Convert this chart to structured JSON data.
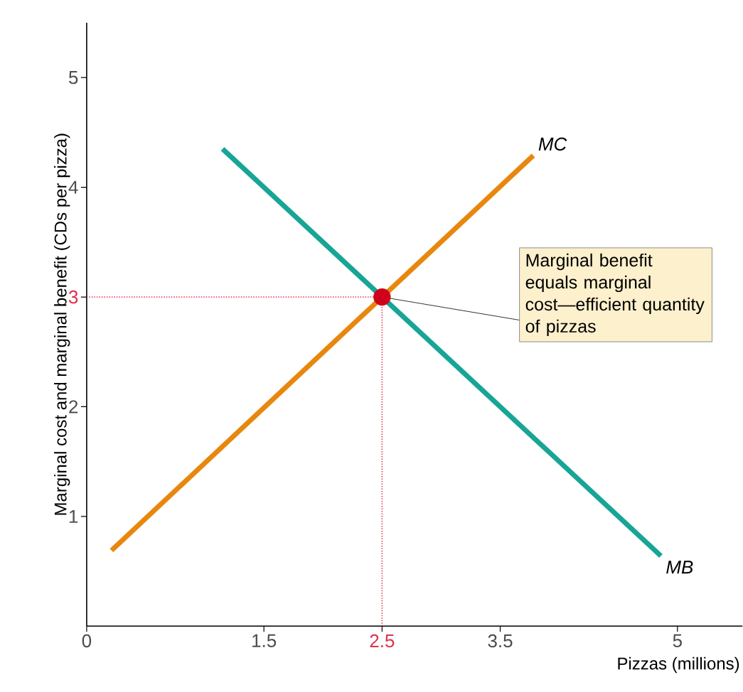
{
  "chart_data": {
    "type": "line",
    "xlabel": "Pizzas (millions)",
    "ylabel": "Marginal cost and marginal benefit (CDs per pizza)",
    "xlim": [
      0,
      5.55
    ],
    "ylim": [
      0,
      5.5
    ],
    "xticks": [
      0,
      1.5,
      2.5,
      3.5,
      5
    ],
    "yticks": [
      1,
      2,
      3,
      4,
      5
    ],
    "marker": "none",
    "series": [
      {
        "name": "MC",
        "color": "#e8870e",
        "x": [
          0.21,
          3.78
        ],
        "values": [
          0.69,
          4.29
        ]
      },
      {
        "name": "MB",
        "color": "#17a596",
        "x": [
          1.15,
          4.86
        ],
        "values": [
          4.35,
          0.64
        ]
      },
      {
        "type": "scatter",
        "color": "#d0021b",
        "x": [
          2.5
        ],
        "values": [
          3
        ]
      }
    ],
    "ref_lines": [
      {
        "axis": "x",
        "value": 2.5,
        "color": "#e0304a",
        "line_style": "dotted"
      },
      {
        "axis": "y",
        "value": 3,
        "color": "#e0304a",
        "line_style": "dotted"
      }
    ],
    "annotations": [
      {
        "text": "Marginal benefit equals marginal cost—efficient quantity of pizzas",
        "x": 2.5,
        "y": 3
      }
    ]
  }
}
